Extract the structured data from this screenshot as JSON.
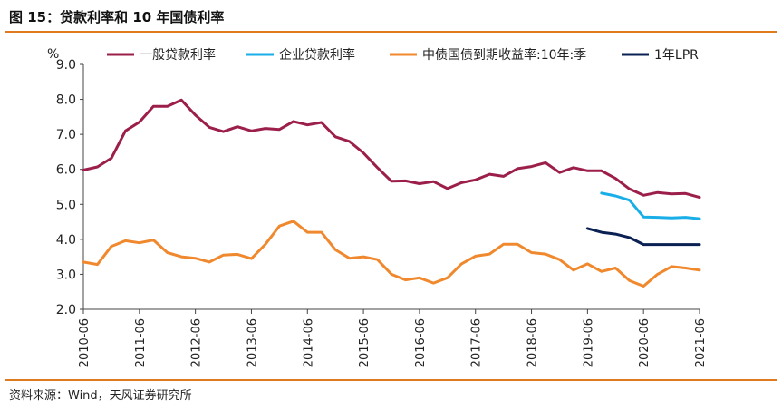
{
  "figure": {
    "title": "图 15：贷款利率和 10 年国债利率",
    "source": "资料来源：Wind，天风证券研究所"
  },
  "chart_data": {
    "type": "line",
    "ylabel": "%",
    "ylim": [
      2.0,
      9.0
    ],
    "yticks": [
      "2.0",
      "3.0",
      "4.0",
      "5.0",
      "6.0",
      "7.0",
      "8.0",
      "9.0"
    ],
    "xticks": [
      "2010-06",
      "2011-06",
      "2012-06",
      "2013-06",
      "2014-06",
      "2015-06",
      "2016-06",
      "2017-06",
      "2018-06",
      "2019-06",
      "2020-06",
      "2021-06"
    ],
    "x": [
      "2010-06",
      "2010-09",
      "2010-12",
      "2011-03",
      "2011-06",
      "2011-09",
      "2011-12",
      "2012-03",
      "2012-06",
      "2012-09",
      "2012-12",
      "2013-03",
      "2013-06",
      "2013-09",
      "2013-12",
      "2014-03",
      "2014-06",
      "2014-09",
      "2014-12",
      "2015-03",
      "2015-06",
      "2015-09",
      "2015-12",
      "2016-03",
      "2016-06",
      "2016-09",
      "2016-12",
      "2017-03",
      "2017-06",
      "2017-09",
      "2017-12",
      "2018-03",
      "2018-06",
      "2018-09",
      "2018-12",
      "2019-03",
      "2019-06",
      "2019-09",
      "2019-12",
      "2020-03",
      "2020-06",
      "2020-09",
      "2020-12",
      "2021-03",
      "2021-06"
    ],
    "legend_position": "top",
    "series": [
      {
        "name": "一般贷款利率",
        "color": "#9b1f4a",
        "values": [
          5.98,
          6.07,
          6.32,
          7.1,
          7.35,
          7.8,
          7.8,
          7.98,
          7.55,
          7.2,
          7.08,
          7.22,
          7.1,
          7.17,
          7.14,
          7.37,
          7.27,
          7.34,
          6.93,
          6.8,
          6.47,
          6.05,
          5.66,
          5.67,
          5.59,
          5.65,
          5.45,
          5.62,
          5.7,
          5.86,
          5.8,
          6.02,
          6.08,
          6.19,
          5.91,
          6.05,
          5.96,
          5.96,
          5.74,
          5.44,
          5.26,
          5.34,
          5.3,
          5.31,
          5.2
        ]
      },
      {
        "name": "企业贷款利率",
        "color": "#1aaee8",
        "values": [
          null,
          null,
          null,
          null,
          null,
          null,
          null,
          null,
          null,
          null,
          null,
          null,
          null,
          null,
          null,
          null,
          null,
          null,
          null,
          null,
          null,
          null,
          null,
          null,
          null,
          null,
          null,
          null,
          null,
          null,
          null,
          null,
          null,
          null,
          null,
          null,
          null,
          5.32,
          5.24,
          5.12,
          4.64,
          4.63,
          4.61,
          4.63,
          4.59
        ]
      },
      {
        "name": "中债国债到期收益率:10年:季",
        "color": "#f0892e",
        "values": [
          3.35,
          3.28,
          3.8,
          3.96,
          3.9,
          3.98,
          3.62,
          3.5,
          3.46,
          3.35,
          3.55,
          3.57,
          3.45,
          3.86,
          4.38,
          4.52,
          4.2,
          4.2,
          3.7,
          3.46,
          3.5,
          3.42,
          3.0,
          2.84,
          2.9,
          2.75,
          2.9,
          3.3,
          3.52,
          3.58,
          3.86,
          3.86,
          3.62,
          3.58,
          3.42,
          3.12,
          3.3,
          3.08,
          3.18,
          2.82,
          2.66,
          3.0,
          3.22,
          3.18,
          3.12
        ]
      },
      {
        "name": "1年LPR",
        "color": "#0b2154",
        "values": [
          null,
          null,
          null,
          null,
          null,
          null,
          null,
          null,
          null,
          null,
          null,
          null,
          null,
          null,
          null,
          null,
          null,
          null,
          null,
          null,
          null,
          null,
          null,
          null,
          null,
          null,
          null,
          null,
          null,
          null,
          null,
          null,
          null,
          null,
          null,
          null,
          4.31,
          4.2,
          4.15,
          4.05,
          3.85,
          3.85,
          3.85,
          3.85,
          3.85
        ]
      }
    ]
  }
}
